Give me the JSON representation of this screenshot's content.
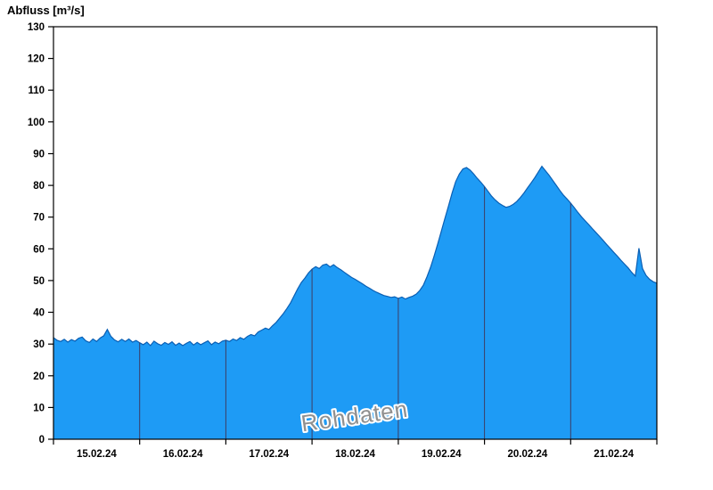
{
  "colors": {
    "area_fill": "#1e9bf5",
    "area_stroke": "#0a5fb4",
    "day_gridline": "#3c3c64",
    "axis": "#000000",
    "watermark_fill": "#909090",
    "background": "#ffffff"
  },
  "chart_data": {
    "type": "area",
    "title": "",
    "ylabel": "Abfluss [m³/s]",
    "xlabel": "",
    "ylim": [
      0,
      130
    ],
    "ytick_step": 10,
    "grid": "vertical lines at day boundaries, clipped inside filled area",
    "legend": "none",
    "annotations": [
      "Rohdaten"
    ],
    "x_start": "15.02.24 00:00",
    "x_end": "22.02.24 00:00",
    "x_resolution": "hourly",
    "categories": [
      "15.02.24",
      "16.02.24",
      "17.02.24",
      "18.02.24",
      "19.02.24",
      "20.02.24",
      "21.02.24"
    ],
    "series": [
      {
        "name": "Abfluss",
        "values": [
          32.0,
          31.2,
          30.8,
          31.5,
          30.6,
          31.4,
          30.9,
          31.8,
          32.2,
          31.0,
          30.5,
          31.6,
          30.8,
          31.9,
          32.6,
          34.6,
          32.4,
          31.3,
          30.7,
          31.5,
          30.8,
          31.6,
          30.6,
          31.1,
          30.4,
          29.8,
          30.6,
          29.5,
          30.9,
          30.1,
          29.6,
          30.5,
          29.9,
          30.7,
          29.6,
          30.3,
          29.5,
          30.2,
          30.8,
          29.7,
          30.5,
          29.8,
          30.4,
          31.0,
          29.8,
          30.6,
          30.1,
          30.9,
          31.2,
          30.8,
          31.6,
          31.1,
          32.0,
          31.5,
          32.4,
          33.0,
          32.6,
          33.8,
          34.4,
          35.0,
          34.6,
          35.8,
          36.8,
          38.2,
          39.6,
          41.2,
          43.0,
          45.2,
          47.4,
          49.4,
          50.8,
          52.4,
          53.6,
          54.4,
          53.8,
          54.9,
          55.2,
          54.3,
          55.0,
          54.1,
          53.4,
          52.6,
          51.8,
          51.0,
          50.4,
          49.7,
          49.0,
          48.2,
          47.6,
          46.9,
          46.3,
          45.8,
          45.3,
          45.0,
          44.7,
          44.9,
          44.4,
          44.8,
          44.2,
          44.7,
          45.1,
          45.7,
          46.9,
          48.6,
          51.2,
          54.2,
          57.8,
          61.6,
          65.6,
          69.6,
          73.6,
          77.6,
          81.2,
          83.6,
          85.2,
          85.6,
          84.8,
          83.6,
          82.2,
          81.0,
          79.6,
          78.1,
          76.6,
          75.4,
          74.4,
          73.7,
          73.1,
          73.4,
          74.0,
          74.9,
          76.2,
          77.6,
          79.2,
          80.8,
          82.4,
          84.2,
          86.0,
          84.6,
          83.2,
          81.6,
          80.0,
          78.4,
          76.9,
          75.7,
          74.4,
          73.0,
          71.5,
          70.1,
          68.9,
          67.7,
          66.4,
          65.2,
          64.0,
          62.7,
          61.4,
          60.2,
          58.9,
          57.7,
          56.4,
          55.2,
          54.0,
          52.6,
          51.4,
          60.2,
          53.8,
          51.6,
          50.4,
          49.6,
          49.2
        ]
      }
    ]
  }
}
